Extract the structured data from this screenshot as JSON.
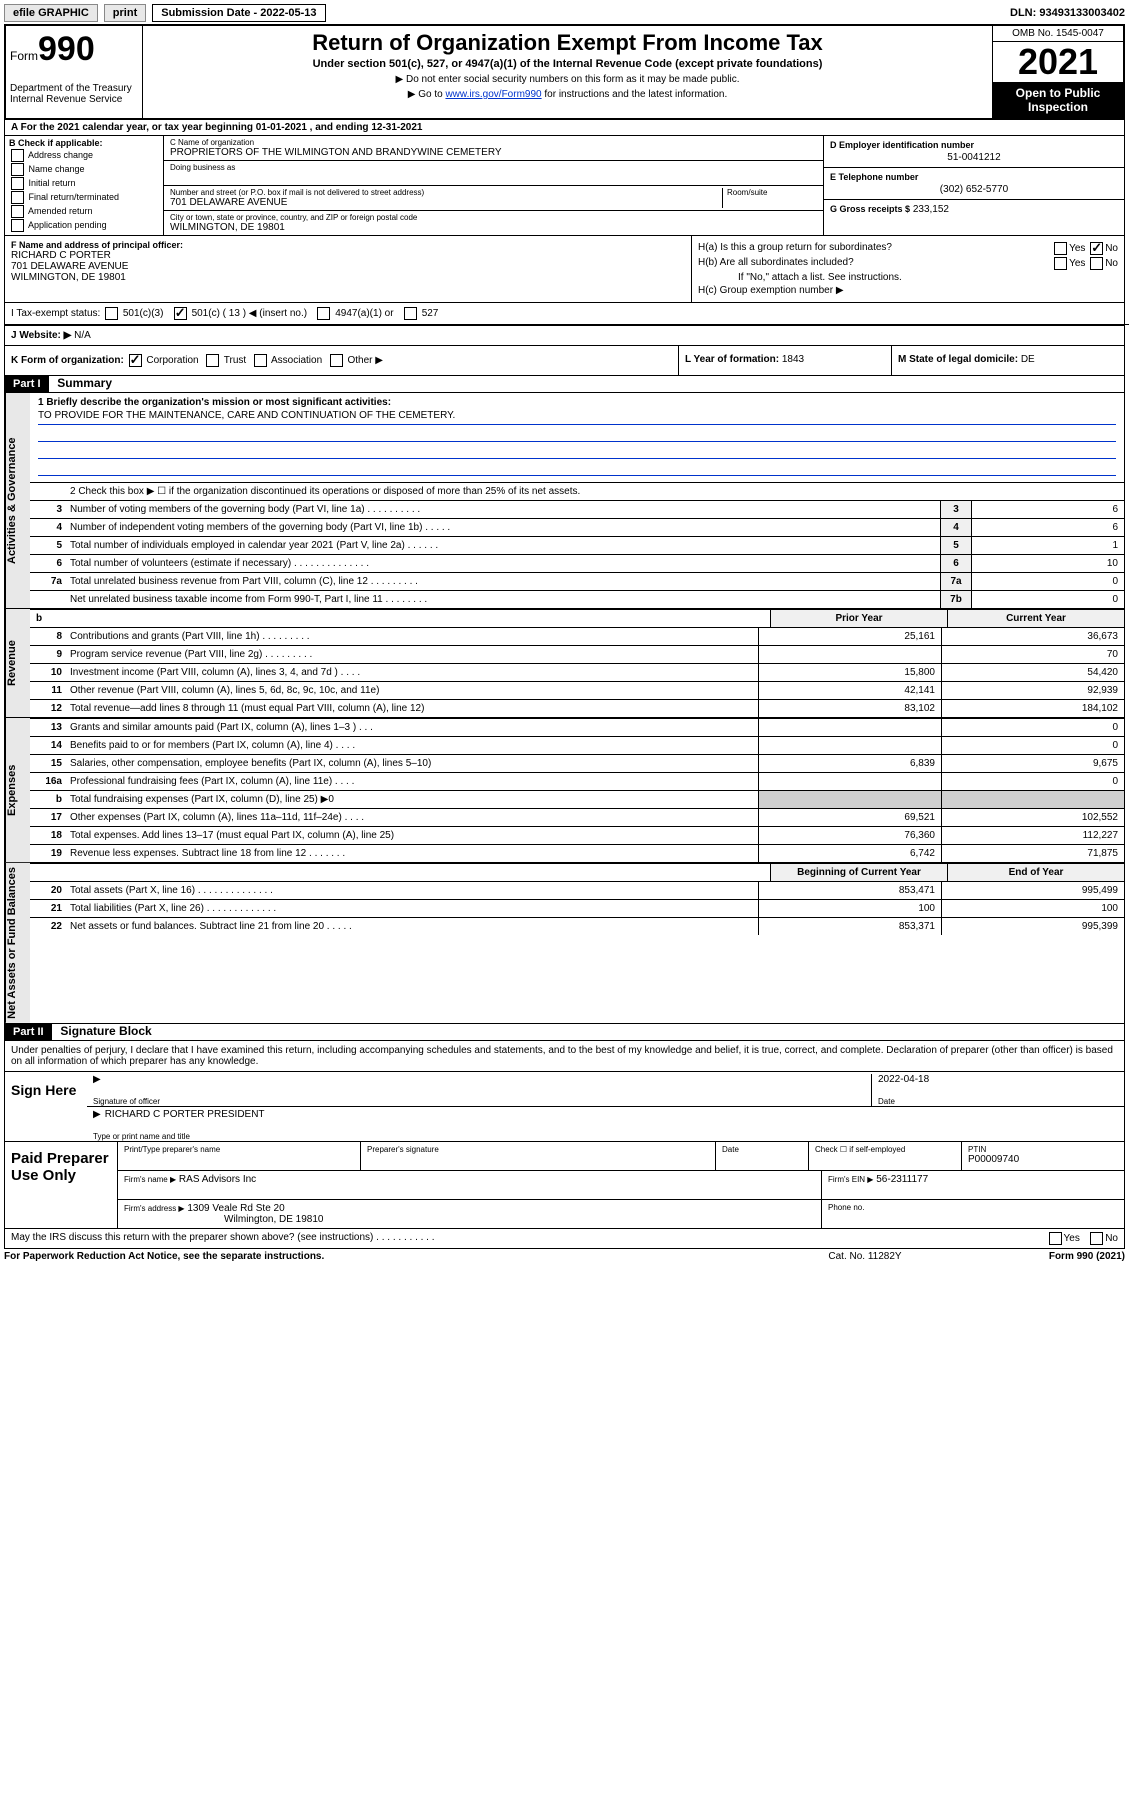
{
  "topbar": {
    "efile": "efile GRAPHIC",
    "print": "print",
    "submission_label": "Submission Date - 2022-05-13",
    "dln": "DLN: 93493133003402"
  },
  "header": {
    "form_prefix": "Form",
    "form_number": "990",
    "title": "Return of Organization Exempt From Income Tax",
    "subtitle": "Under section 501(c), 527, or 4947(a)(1) of the Internal Revenue Code (except private foundations)",
    "note1": "▶ Do not enter social security numbers on this form as it may be made public.",
    "note2_pre": "▶ Go to ",
    "note2_link": "www.irs.gov/Form990",
    "note2_post": " for instructions and the latest information.",
    "dept": "Department of the Treasury",
    "irs": "Internal Revenue Service",
    "omb": "OMB No. 1545-0047",
    "year": "2021",
    "open": "Open to Public Inspection"
  },
  "row_a": "A For the 2021 calendar year, or tax year beginning 01-01-2021   , and ending 12-31-2021",
  "col_b": {
    "label": "B Check if applicable:",
    "items": [
      "Address change",
      "Name change",
      "Initial return",
      "Final return/terminated",
      "Amended return",
      "Application pending"
    ]
  },
  "col_c": {
    "name_lab": "C Name of organization",
    "name_val": "PROPRIETORS OF THE WILMINGTON AND BRANDYWINE CEMETERY",
    "dba_lab": "Doing business as",
    "street_lab": "Number and street (or P.O. box if mail is not delivered to street address)",
    "street_val": "701 DELAWARE AVENUE",
    "suite_lab": "Room/suite",
    "city_lab": "City or town, state or province, country, and ZIP or foreign postal code",
    "city_val": "WILMINGTON, DE  19801"
  },
  "col_d": {
    "ein_lab": "D Employer identification number",
    "ein_val": "51-0041212",
    "tel_lab": "E Telephone number",
    "tel_val": "(302) 652-5770",
    "gross_lab": "G Gross receipts $",
    "gross_val": "233,152"
  },
  "col_f": {
    "lab": "F Name and address of principal officer:",
    "name": "RICHARD C PORTER",
    "street": "701 DELAWARE AVENUE",
    "city": "WILMINGTON, DE  19801"
  },
  "col_h": {
    "ha": "H(a)  Is this a group return for subordinates?",
    "hb": "H(b)  Are all subordinates included?",
    "hb_note": "If \"No,\" attach a list. See instructions.",
    "hc": "H(c)  Group exemption number ▶",
    "yes": "Yes",
    "no": "No"
  },
  "row_i": {
    "label": "I   Tax-exempt status:",
    "opts": [
      "501(c)(3)",
      "501(c) ( 13 ) ◀ (insert no.)",
      "4947(a)(1) or",
      "527"
    ]
  },
  "row_j": {
    "label": "J   Website: ▶",
    "val": "N/A"
  },
  "row_k": {
    "left": "K Form of organization:",
    "opts": [
      "Corporation",
      "Trust",
      "Association",
      "Other ▶"
    ],
    "mid_lab": "L Year of formation:",
    "mid_val": "1843",
    "right_lab": "M State of legal domicile:",
    "right_val": "DE"
  },
  "part1": {
    "hdr": "Part I",
    "title": "Summary"
  },
  "mission": {
    "label": "1  Briefly describe the organization's mission or most significant activities:",
    "text": "TO PROVIDE FOR THE MAINTENANCE, CARE AND CONTINUATION OF THE CEMETERY."
  },
  "line2": "2   Check this box ▶ ☐  if the organization discontinued its operations or disposed of more than 25% of its net assets.",
  "gov_lines": [
    {
      "n": "3",
      "d": "Number of voting members of the governing body (Part VI, line 1a)  .   .   .   .   .   .   .   .   .   .",
      "box": "3",
      "v": "6"
    },
    {
      "n": "4",
      "d": "Number of independent voting members of the governing body (Part VI, line 1b)  .   .   .   .   .",
      "box": "4",
      "v": "6"
    },
    {
      "n": "5",
      "d": "Total number of individuals employed in calendar year 2021 (Part V, line 2a)   .   .   .   .   .   .",
      "box": "5",
      "v": "1"
    },
    {
      "n": "6",
      "d": "Total number of volunteers (estimate if necessary)   .   .   .   .   .   .   .   .   .   .   .   .   .   .",
      "box": "6",
      "v": "10"
    },
    {
      "n": "7a",
      "d": "Total unrelated business revenue from Part VIII, column (C), line 12  .   .   .   .   .   .   .   .   .",
      "box": "7a",
      "v": "0"
    },
    {
      "n": "",
      "d": "Net unrelated business taxable income from Form 990-T, Part I, line 11   .   .   .   .   .   .   .   .",
      "box": "7b",
      "v": "0"
    }
  ],
  "rev_hdr": {
    "b": "b",
    "prior": "Prior Year",
    "curr": "Current Year"
  },
  "rev_lines": [
    {
      "n": "8",
      "d": "Contributions and grants (Part VIII, line 1h)   .   .   .   .   .   .   .   .   .",
      "p": "25,161",
      "c": "36,673"
    },
    {
      "n": "9",
      "d": "Program service revenue (Part VIII, line 2g)  .   .   .   .   .   .   .   .   .",
      "p": "",
      "c": "70"
    },
    {
      "n": "10",
      "d": "Investment income (Part VIII, column (A), lines 3, 4, and 7d )  .   .   .   .",
      "p": "15,800",
      "c": "54,420"
    },
    {
      "n": "11",
      "d": "Other revenue (Part VIII, column (A), lines 5, 6d, 8c, 9c, 10c, and 11e)",
      "p": "42,141",
      "c": "92,939"
    },
    {
      "n": "12",
      "d": "Total revenue—add lines 8 through 11 (must equal Part VIII, column (A), line 12)",
      "p": "83,102",
      "c": "184,102"
    }
  ],
  "exp_lines": [
    {
      "n": "13",
      "d": "Grants and similar amounts paid (Part IX, column (A), lines 1–3 )  .   .   .",
      "p": "",
      "c": "0"
    },
    {
      "n": "14",
      "d": "Benefits paid to or for members (Part IX, column (A), line 4)  .   .   .   .",
      "p": "",
      "c": "0"
    },
    {
      "n": "15",
      "d": "Salaries, other compensation, employee benefits (Part IX, column (A), lines 5–10)",
      "p": "6,839",
      "c": "9,675"
    },
    {
      "n": "16a",
      "d": "Professional fundraising fees (Part IX, column (A), line 11e)  .   .   .   .",
      "p": "",
      "c": "0"
    },
    {
      "n": "b",
      "d": "Total fundraising expenses (Part IX, column (D), line 25) ▶0",
      "p": "shade",
      "c": "shade"
    },
    {
      "n": "17",
      "d": "Other expenses (Part IX, column (A), lines 11a–11d, 11f–24e)  .   .   .   .",
      "p": "69,521",
      "c": "102,552"
    },
    {
      "n": "18",
      "d": "Total expenses. Add lines 13–17 (must equal Part IX, column (A), line 25)",
      "p": "76,360",
      "c": "112,227"
    },
    {
      "n": "19",
      "d": "Revenue less expenses. Subtract line 18 from line 12  .   .   .   .   .   .   .",
      "p": "6,742",
      "c": "71,875"
    }
  ],
  "net_hdr": {
    "prior": "Beginning of Current Year",
    "curr": "End of Year"
  },
  "net_lines": [
    {
      "n": "20",
      "d": "Total assets (Part X, line 16)  .   .   .   .   .   .   .   .   .   .   .   .   .   .",
      "p": "853,471",
      "c": "995,499"
    },
    {
      "n": "21",
      "d": "Total liabilities (Part X, line 26)  .   .   .   .   .   .   .   .   .   .   .   .   .",
      "p": "100",
      "c": "100"
    },
    {
      "n": "22",
      "d": "Net assets or fund balances. Subtract line 21 from line 20  .   .   .   .   .",
      "p": "853,371",
      "c": "995,399"
    }
  ],
  "part2": {
    "hdr": "Part II",
    "title": "Signature Block"
  },
  "sig": {
    "decl": "Under penalties of perjury, I declare that I have examined this return, including accompanying schedules and statements, and to the best of my knowledge and belief, it is true, correct, and complete. Declaration of preparer (other than officer) is based on all information of which preparer has any knowledge.",
    "sign_here": "Sign Here",
    "sig_lab": "Signature of officer",
    "date_val": "2022-04-18",
    "date_lab": "Date",
    "name": "RICHARD C PORTER  PRESIDENT",
    "name_lab": "Type or print name and title"
  },
  "prep": {
    "label": "Paid Preparer Use Only",
    "h1": "Print/Type preparer's name",
    "h2": "Preparer's signature",
    "h3": "Date",
    "h4_a": "Check ☐ if self-employed",
    "h4_b": "PTIN",
    "ptin": "P00009740",
    "firm_lab": "Firm's name   ▶",
    "firm_val": "RAS Advisors Inc",
    "ein_lab": "Firm's EIN ▶",
    "ein_val": "56-2311177",
    "addr_lab": "Firm's address ▶",
    "addr_val": "1309 Veale Rd Ste 20",
    "addr_val2": "Wilmington, DE  19810",
    "phone_lab": "Phone no."
  },
  "discuss": {
    "text": "May the IRS discuss this return with the preparer shown above? (see instructions)   .   .   .   .   .   .   .   .   .   .   .",
    "yes": "Yes",
    "no": "No"
  },
  "footer": {
    "left": "For Paperwork Reduction Act Notice, see the separate instructions.",
    "mid": "Cat. No. 11282Y",
    "right": "Form 990 (2021)"
  },
  "vtabs": {
    "gov": "Activities & Governance",
    "rev": "Revenue",
    "exp": "Expenses",
    "net": "Net Assets or Fund Balances"
  }
}
